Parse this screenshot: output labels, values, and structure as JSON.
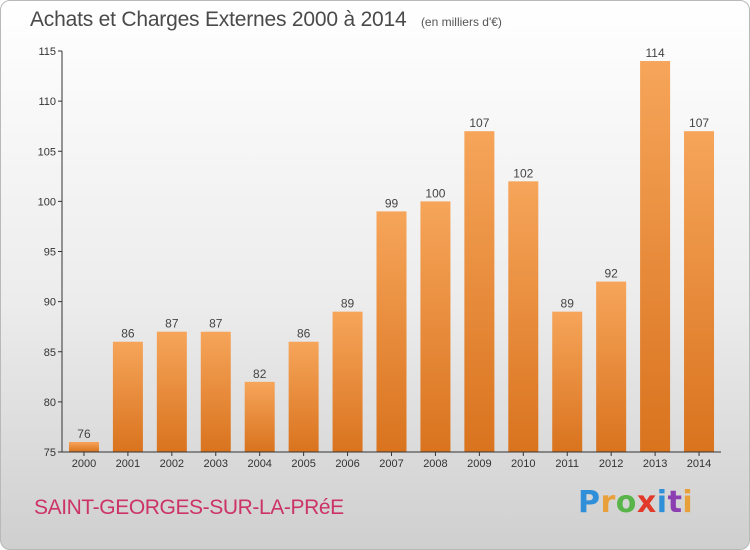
{
  "header": {
    "title": "Achats et Charges Externes 2000 à 2014",
    "subtitle": "(en milliers d'€)"
  },
  "footer": {
    "commune": "SAINT-GEORGES-SUR-LA-PRéE",
    "logo_letters": [
      "P",
      "r",
      "o",
      "x",
      "i",
      "t",
      "i"
    ]
  },
  "colors": {
    "bar_top": "#f6a55a",
    "bar_bottom": "#d9731e",
    "axis": "#333333",
    "commune": "#cc3366"
  },
  "chart_data": {
    "type": "bar",
    "categories": [
      "2000",
      "2001",
      "2002",
      "2003",
      "2004",
      "2005",
      "2006",
      "2007",
      "2008",
      "2009",
      "2010",
      "2011",
      "2012",
      "2013",
      "2014"
    ],
    "values": [
      76,
      86,
      87,
      87,
      82,
      86,
      89,
      99,
      100,
      107,
      102,
      89,
      92,
      114,
      107
    ],
    "title": "Achats et Charges Externes 2000 à 2014",
    "subtitle": "(en milliers d'€)",
    "xlabel": "",
    "ylabel": "",
    "ylim": [
      75,
      115
    ],
    "yticks": [
      75,
      80,
      85,
      90,
      95,
      100,
      105,
      110,
      115
    ],
    "grid": false,
    "legend": "none",
    "data_labels": true
  }
}
